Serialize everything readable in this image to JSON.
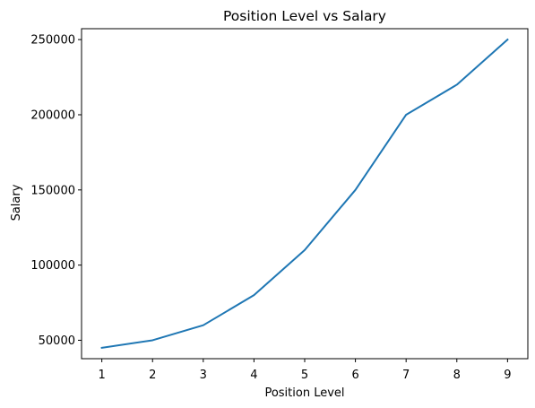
{
  "chart_data": {
    "type": "line",
    "title": "Position Level vs Salary",
    "xlabel": "Position Level",
    "ylabel": "Salary",
    "xlim": [
      0.6,
      9.4
    ],
    "ylim": [
      37750,
      257250
    ],
    "x_ticks": [
      1,
      2,
      3,
      4,
      5,
      6,
      7,
      8,
      9
    ],
    "y_ticks": [
      50000,
      100000,
      150000,
      200000,
      250000
    ],
    "grid": false,
    "series": [
      {
        "color": "#1f77b4",
        "x": [
          1,
          2,
          3,
          4,
          5,
          6,
          7,
          8,
          9
        ],
        "y": [
          45000,
          50000,
          60000,
          80000,
          110000,
          150000,
          200000,
          220000,
          250000
        ]
      }
    ]
  }
}
